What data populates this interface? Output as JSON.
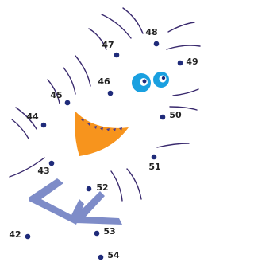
{
  "dots": [
    "42",
    "43",
    "44",
    "45",
    "46",
    "47",
    "48",
    "49",
    "50",
    "51",
    "52",
    "53",
    "54"
  ]
}
